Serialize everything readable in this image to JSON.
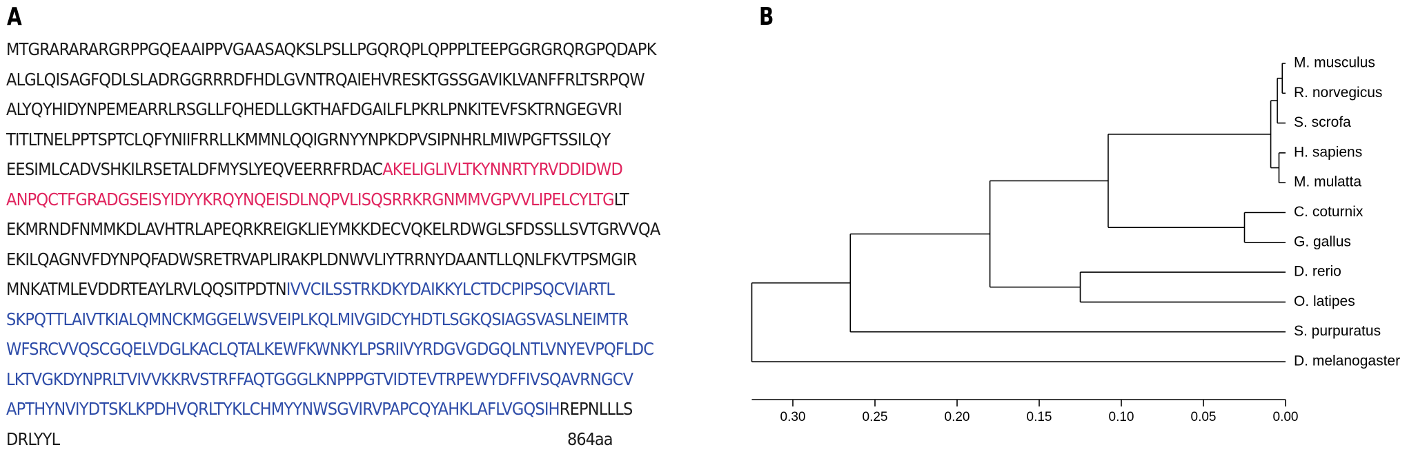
{
  "panels": {
    "a_label": "A",
    "b_label": "B"
  },
  "sequence": {
    "length_label": "864aa",
    "lines": [
      [
        {
          "t": "MTGRARARARGRPPGQEAAIPPVGAASAQKSLPSLLPGQRQPLQPPPLTEEPGGRGRQRGPQDAPK",
          "c": "black"
        }
      ],
      [
        {
          "t": "ALGLQISAGFQDLSLADRGGRRRDFHDLGVNTRQAIEHVRESKTGSSGAVIKLVANFFRLTSRPQW",
          "c": "black"
        }
      ],
      [
        {
          "t": "ALYQYHIDYNPEMEARRLRSGLLFQHEDLLGKTHAFDGAILFLPKRLPNKITEVFSKTRNGEGVRI",
          "c": "black"
        }
      ],
      [
        {
          "t": "TITLTNELPPTSPTCLQFYNIIFRRLLKMMNLQQIGRNYYNPKDPVSIPNHRLMIWPGFTSSILQY",
          "c": "black"
        }
      ],
      [
        {
          "t": "EESIMLCADVSHKILRSETALDFMYSLYEQVEERRFRDAC",
          "c": "black"
        },
        {
          "t": "AKELIGLIVLTKYNNRTYRVDDIDWD",
          "c": "red"
        }
      ],
      [
        {
          "t": "ANPQCTFGRADGSEISYIDYYKRQYNQEISDLNQPVLISQSRRKRGNMMVGPVVLIPELCYLTG",
          "c": "red"
        },
        {
          "t": "LT",
          "c": "black"
        }
      ],
      [
        {
          "t": "EKMRNDFNMMKDLAVHTRLAPEQRKREIGKLIEYMKKDECVQKELRDWGLSFDSSLLSVTGRVVQA",
          "c": "black"
        }
      ],
      [
        {
          "t": "EKILQAGNVFDYNPQFADWSRETRVAPLIRAKPLDNWVLIYTRRNYDAANTLLQNLFKVTPSMGIR",
          "c": "black"
        }
      ],
      [
        {
          "t": "MNKATMLEVDDRTEAYLRVLQQSITPDTN",
          "c": "black"
        },
        {
          "t": "IVVCILSSTRKDKYDAIKKYLCTDCPIPSQCVIARTL",
          "c": "blue"
        }
      ],
      [
        {
          "t": "SKPQTTLAIVTKIALQMNCKMGGELWSVEIPLKQLMIVGIDCYHDTLSGKQSIAGSVASLNEIMTR",
          "c": "blue"
        }
      ],
      [
        {
          "t": "WFSRCVVQSCGQELVDGLKACLQTALKEWFKWNKYLPSRIIVYRDGVGDGQLNTLVNYEVPQFLDC",
          "c": "blue"
        }
      ],
      [
        {
          "t": "LKTVGKDYNPRLTVIVVKKRVSTRFFAQTGGGLKNPPPGTVIDTEVTRPEWYDFFIVSQAVRNGCV",
          "c": "blue"
        }
      ],
      [
        {
          "t": "APTHYNVIYDTSKLKPDHVQRLTYKLCHMYYNWSGVIRVPAPCQYAHKLAFLVGQSIH",
          "c": "blue"
        },
        {
          "t": "REPNLLLS",
          "c": "black"
        }
      ],
      [
        {
          "t": "DRLYYL",
          "c": "black"
        }
      ]
    ],
    "colors": {
      "black": "#1a1a1a",
      "red": "#e0245e",
      "blue": "#2e4ca8"
    }
  },
  "tree": {
    "taxa": [
      "M. musculus",
      "R. norvegicus",
      "S. scrofa",
      "H. sapiens",
      "M. mulatta",
      "C. coturnix",
      "G. gallus",
      "D. rerio",
      "O. latipes",
      "S. purpuratus",
      "D. melanogaster"
    ],
    "axis_ticks": [
      0.3,
      0.25,
      0.2,
      0.15,
      0.1,
      0.05,
      0.0
    ],
    "axis_tick_labels": [
      "0.30",
      "0.25",
      "0.20",
      "0.15",
      "0.10",
      "0.05",
      "0.00"
    ],
    "axis_range": [
      0.325,
      0.0
    ],
    "node_heights": {
      "musculus_norvegicus": 0.002,
      "rodents_scrofa": 0.005,
      "sapiens_mulatta": 0.004,
      "euarchontoglires": 0.009,
      "birds": 0.025,
      "amniotes": 0.108,
      "fish": 0.125,
      "vertebrates": 0.18,
      "deuterostomes": 0.265,
      "root": 0.325
    },
    "line_color": "#000000"
  }
}
